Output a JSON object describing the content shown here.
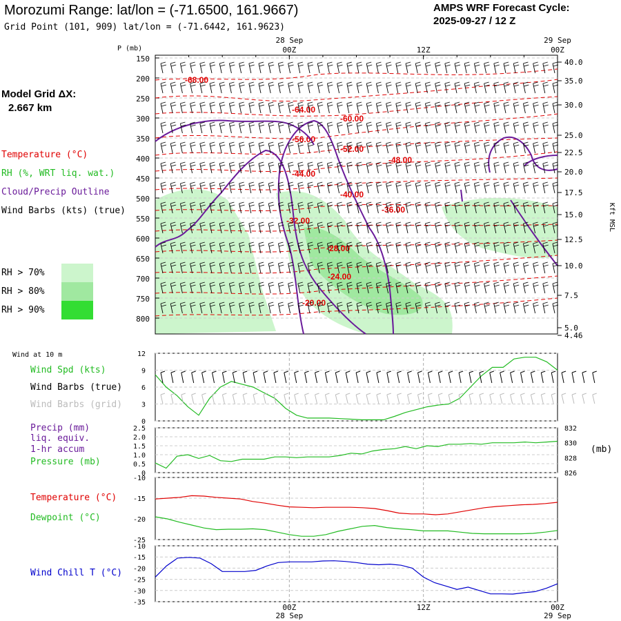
{
  "header": {
    "title": "Morozumi Range:  lat/lon = (-71.6500, 161.9667)",
    "subtitle": "Grid Point (101, 909) lat/lon = (-71.6442, 161.9623)",
    "cycle_label": "AMPS WRF Forecast Cycle:",
    "cycle_value": "2025-09-27 / 12  Z",
    "grid_label": "Model Grid ΔX:",
    "grid_value": "2.667 km"
  },
  "legend": {
    "temperature": "Temperature (°C)",
    "rh": "RH (%, WRT liq. wat.)",
    "cloud": "Cloud/Precip Outline",
    "wind": "Wind Barbs (kts) (true)",
    "rh70": "RH > 70%",
    "rh80": "RH > 80%",
    "rh90": "RH > 90%",
    "wind10m": "Wind at 10 m",
    "wind_spd": "Wind Spd (kts)",
    "barbs_true": "Wind Barbs (true)",
    "barbs_grid": "Wind Barbs (grid)",
    "precip1": "Precip (mm)",
    "precip2": "liq. equiv.",
    "precip3": "1-hr accum",
    "pressure": "Pressure (mb)",
    "mb_unit": "(mb)",
    "temp_sfc": "Temperature (°C)",
    "dewpoint": "Dewpoint (°C)",
    "windchill": "Wind Chill T (°C)"
  },
  "colors": {
    "temperature": "#e00000",
    "rh": "#22bb22",
    "cloud": "#6a1b9a",
    "windchill": "#0000cc",
    "rh70": "#ccf5cc",
    "rh80": "#a0e8a0",
    "rh90": "#33dd33",
    "grey": "#bbbbbb"
  },
  "chart_data": {
    "type": "line",
    "time_axis": {
      "top_labels": [
        {
          "date": "28 Sep",
          "time": "00Z"
        },
        {
          "date": "",
          "time": "12Z"
        },
        {
          "date": "29 Sep",
          "time": "00Z"
        }
      ],
      "bottom_labels": [
        {
          "time": "00Z",
          "date": "28 Sep"
        },
        {
          "time": "12Z",
          "date": ""
        },
        {
          "time": "00Z",
          "date": "29 Sep"
        }
      ],
      "forecast_hours": [
        0,
        36
      ],
      "label_hours": [
        12,
        24,
        36
      ]
    },
    "cross_section": {
      "p_axis_label": "P (mb)",
      "pressure_levels": [
        "150",
        "200",
        "250",
        "300",
        "350",
        "400",
        "450",
        "500",
        "550",
        "600",
        "650",
        "700",
        "750",
        "800"
      ],
      "kft_levels": [
        "40.0",
        "35.0",
        "30.0",
        "25.0",
        "22.5",
        "20.0",
        "17.5",
        "15.0",
        "12.5",
        "10.0",
        "7.5",
        "5.0",
        "4.46"
      ],
      "kft_label": "Kft MSL",
      "temperature_labels": [
        "-68.00",
        "-64.00",
        "-60.00",
        "-56.00",
        "-52.00",
        "-48.00",
        "-44.00",
        "-40.00",
        "-36.00",
        "-32.00",
        "-28.00",
        "-24.00",
        "-20.00"
      ]
    },
    "wind_speed": {
      "ylim": [
        0,
        12
      ],
      "ticks": [
        "12",
        "9",
        "6",
        "3",
        "0"
      ],
      "values": [
        8.2,
        6,
        4.5,
        2.5,
        1,
        4,
        6,
        7,
        6.5,
        6,
        5,
        4,
        2.2,
        1,
        0.5,
        0.5,
        0.5,
        0.4,
        0.3,
        0.2,
        0.2,
        0.2,
        0.8,
        1.5,
        2,
        2.5,
        2.8,
        3,
        4,
        6,
        8,
        9.5,
        9.5,
        11,
        11.3,
        11.3,
        10.5,
        9
      ]
    },
    "pressure": {
      "ylim": [
        826,
        832
      ],
      "ticks": [
        "832",
        "830",
        "828",
        "826"
      ],
      "values": [
        827.3,
        826.6,
        828.2,
        828.4,
        827.9,
        828.3,
        827.6,
        827.5,
        827.8,
        827.8,
        827.8,
        828.1,
        828.1,
        828,
        828.1,
        828.1,
        828.1,
        828.3,
        828.6,
        828.5,
        828.9,
        829.1,
        829.2,
        829.5,
        829.2,
        829.6,
        829.5,
        829.8,
        829.8,
        829.9,
        829.8,
        830,
        830,
        830,
        830.1,
        830,
        830.1,
        830.2
      ]
    },
    "precip": {
      "ticks": [
        "2.5",
        "2.0",
        "1.5",
        "1.0",
        "0.5",
        "0"
      ]
    },
    "temperature_sfc": {
      "ylim": [
        -25,
        -10
      ],
      "ticks": [
        "-10",
        "-15",
        "-20",
        "-25"
      ],
      "values": [
        -15.2,
        -15,
        -14.8,
        -14.4,
        -14.5,
        -14.8,
        -15,
        -15.2,
        -15.8,
        -16.2,
        -16.7,
        -17.1,
        -17.2,
        -17.3,
        -17.2,
        -17.2,
        -17.2,
        -17.3,
        -17.5,
        -18,
        -18.6,
        -18.8,
        -18.8,
        -19,
        -18.8,
        -18.3,
        -17.8,
        -17.3,
        -17,
        -16.8,
        -16.6,
        -16.5,
        -16.3,
        -16
      ]
    },
    "dewpoint": {
      "values": [
        -19.5,
        -20,
        -20.8,
        -21.5,
        -22.2,
        -22.6,
        -22.5,
        -22.5,
        -22.4,
        -22.6,
        -23.2,
        -23.8,
        -24.2,
        -24.2,
        -23.8,
        -23,
        -22.4,
        -21.8,
        -21.6,
        -22.1,
        -22.4,
        -22.6,
        -22.9,
        -22.9,
        -22.9,
        -23.2,
        -23.5,
        -23.6,
        -23.6,
        -23.6,
        -23.6,
        -23.5,
        -23.2,
        -22.8
      ]
    },
    "wind_chill": {
      "ylim": [
        -35,
        -10
      ],
      "ticks": [
        "-10",
        "-15",
        "-20",
        "-25",
        "-30",
        "-35"
      ],
      "values": [
        -24,
        -19,
        -15.5,
        -15.2,
        -15.5,
        -18,
        -21.5,
        -21.5,
        -21.5,
        -21,
        -19,
        -17.5,
        -17.2,
        -17.2,
        -17.2,
        -16.8,
        -16.7,
        -17,
        -17.5,
        -18.2,
        -18.5,
        -18.2,
        -18.7,
        -20,
        -24,
        -26.5,
        -28,
        -29.5,
        -28.5,
        -30,
        -31.5,
        -31.5,
        -31.6,
        -31,
        -30.5,
        -29,
        -27
      ]
    }
  }
}
